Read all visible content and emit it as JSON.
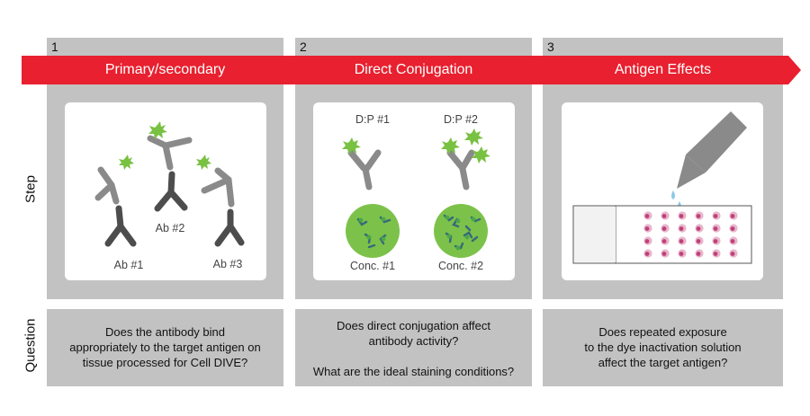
{
  "rows": {
    "step": "Step",
    "question": "Question"
  },
  "columns": [
    {
      "number": "1",
      "title": "Primary/secondary",
      "labels": [
        "Ab #1",
        "Ab #2",
        "Ab #3"
      ],
      "question": [
        "Does the antibody bind",
        "appropriately to the target antigen on",
        "tissue processed for Cell DIVE?"
      ]
    },
    {
      "number": "2",
      "title": "Direct Conjugation",
      "labels": [
        "D:P #1",
        "D:P #2",
        "Conc. #1",
        "Conc. #2"
      ],
      "question": [
        "Does direct conjugation affect",
        "antibody activity?",
        "",
        "What are the ideal staining conditions?"
      ]
    },
    {
      "number": "3",
      "title": "Antigen Effects",
      "labels": [],
      "question": [
        "Does repeated exposure",
        "to the dye inactivation solution",
        "affect the target antigen?"
      ]
    }
  ],
  "colors": {
    "banner": "#e8202f",
    "column_bg": "#c2c2c2",
    "antibody_light": "#8a8a8a",
    "antibody_dark": "#4d4d4d",
    "dye": "#79c143",
    "well": "#7cc24a",
    "tissue": "#c0407a"
  }
}
